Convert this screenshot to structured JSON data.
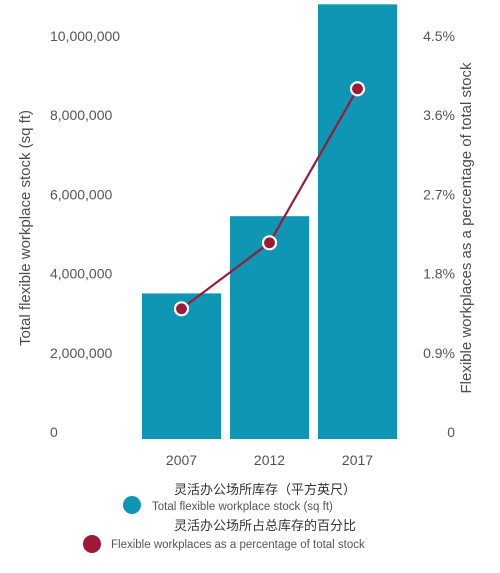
{
  "chart_data": {
    "type": "bar",
    "categories": [
      "2007",
      "2012",
      "2017"
    ],
    "series": [
      {
        "name": "Total flexible workplace stock (sq ft)",
        "name_cn": "灵活办公场所库存（平方英尺）",
        "type": "bar",
        "axis": "left",
        "values": [
          3500000,
          5450000,
          10800000
        ]
      },
      {
        "name": "Flexible workplaces as a percentage of total stock",
        "name_cn": "灵活办公场所占总库存的百分比",
        "type": "line",
        "axis": "right",
        "values": [
          1.4,
          2.15,
          3.9
        ]
      }
    ],
    "ylabel": "Total flexible workplace stock (sq ft)",
    "y2label": "Flexible workplaces as a percentage of total stock",
    "ylim": [
      0,
      10000000
    ],
    "y2lim": [
      0,
      4.5
    ],
    "yticks": [
      "0",
      "2,000,000",
      "4,000,000",
      "6,000,000",
      "8,000,000",
      "10,000,000"
    ],
    "y2ticks": [
      "0",
      "0.9%",
      "1.8%",
      "2.7%",
      "3.6%",
      "4.5%"
    ],
    "grid": false,
    "legend_position": "bottom",
    "colors": {
      "bar": "#0f96b4",
      "line": "#9c1a35",
      "marker_fill": "#9c1a35",
      "marker_stroke": "#ffffff"
    }
  }
}
